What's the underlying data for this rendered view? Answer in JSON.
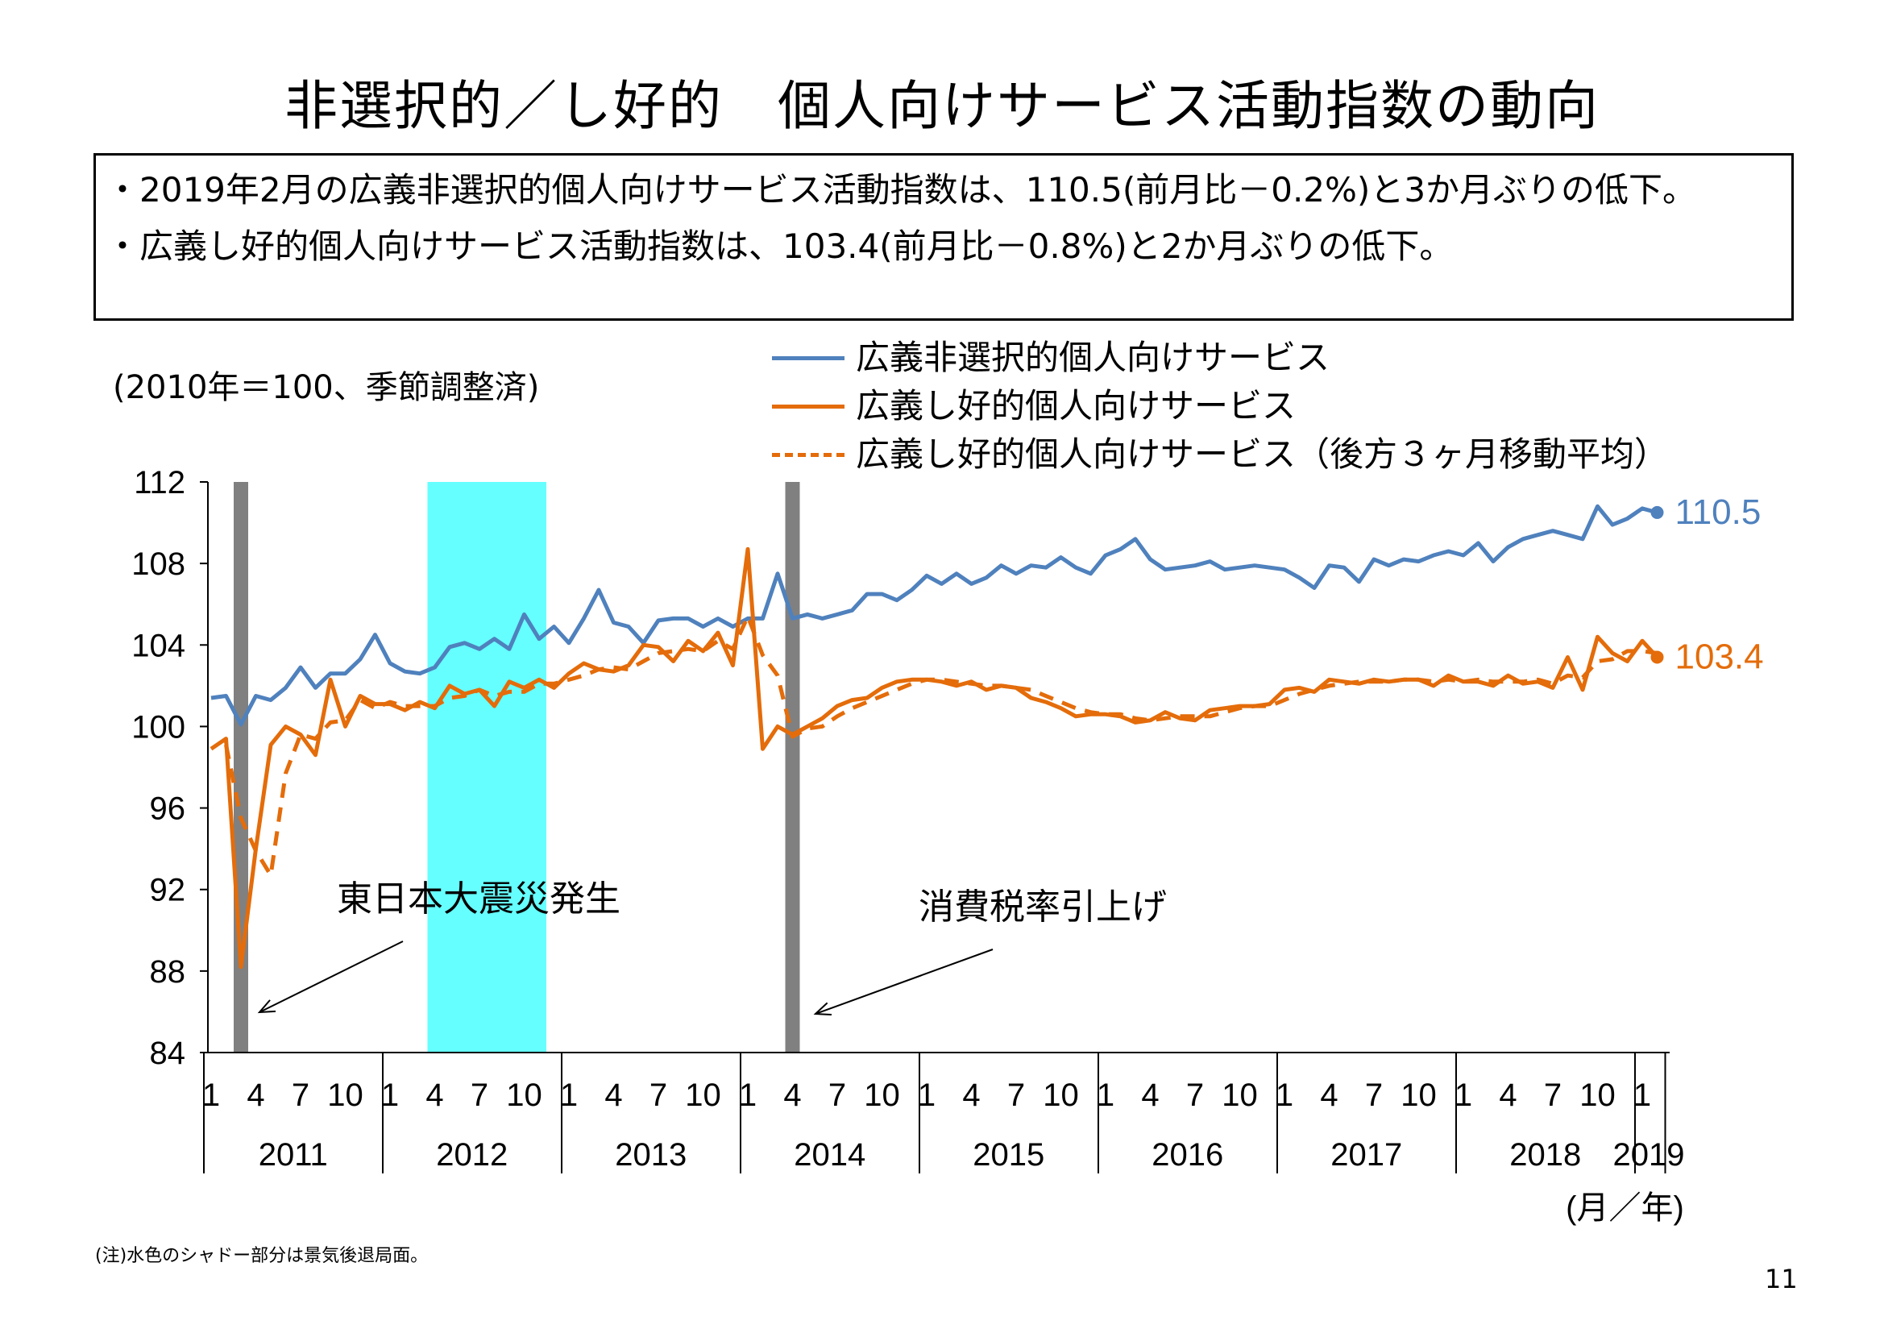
{
  "title": "非選択的／し好的　個人向けサービス活動指数の動向",
  "summary": {
    "line1": "2019年2月の広義非選択的個人向けサービス活動指数は、110.5(前月比－0.2%)と3か月ぶりの低下。",
    "line2": "広義し好的個人向けサービス活動指数は、103.4(前月比－0.8%)と2か月ぶりの低下。"
  },
  "unit_note": "(2010年＝100、季節調整済)",
  "legend": [
    {
      "label": "広義非選択的個人向けサービス",
      "color": "#4f81bd",
      "style": "solid"
    },
    {
      "label": "広義し好的個人向けサービス",
      "color": "#e46c0a",
      "style": "solid"
    },
    {
      "label": "広義し好的個人向けサービス（後方３ヶ月移動平均）",
      "color": "#e46c0a",
      "style": "dashed"
    }
  ],
  "footnote": "(注)水色のシャドー部分は景気後退局面。",
  "page_number": "11",
  "chart_data": {
    "type": "line",
    "ylim": [
      84,
      112
    ],
    "yticks": [
      84,
      88,
      92,
      96,
      100,
      104,
      108,
      112
    ],
    "x_start": "2011-01",
    "x_end": "2019-02",
    "month_tick_labels": [
      "1",
      "4",
      "7",
      "10"
    ],
    "years": [
      "2011",
      "2012",
      "2013",
      "2014",
      "2015",
      "2016",
      "2017",
      "2018",
      "2019"
    ],
    "xlabel": "(月／年)",
    "series": [
      {
        "name": "広義非選択的個人向けサービス",
        "color": "#4f81bd",
        "dash": false,
        "values": [
          101.4,
          101.5,
          100.1,
          101.5,
          101.3,
          101.9,
          102.9,
          101.9,
          102.6,
          102.6,
          103.3,
          104.5,
          103.1,
          102.7,
          102.6,
          102.9,
          103.9,
          104.1,
          103.8,
          104.3,
          103.8,
          105.5,
          104.3,
          104.9,
          104.1,
          105.3,
          106.7,
          105.1,
          104.9,
          104.1,
          105.2,
          105.3,
          105.3,
          104.9,
          105.3,
          104.9,
          105.3,
          105.3,
          107.5,
          105.3,
          105.5,
          105.3,
          105.5,
          105.7,
          106.5,
          106.5,
          106.2,
          106.7,
          107.4,
          107.0,
          107.5,
          107.0,
          107.3,
          107.9,
          107.5,
          107.9,
          107.8,
          108.3,
          107.8,
          107.5,
          108.4,
          108.7,
          109.2,
          108.2,
          107.7,
          107.8,
          107.9,
          108.1,
          107.7,
          107.8,
          107.9,
          107.8,
          107.7,
          107.3,
          106.8,
          107.9,
          107.8,
          107.1,
          108.2,
          107.9,
          108.2,
          108.1,
          108.4,
          108.6,
          108.4,
          109.0,
          108.1,
          108.8,
          109.2,
          109.4,
          109.6,
          109.4,
          109.2,
          110.8,
          109.9,
          110.2,
          110.7,
          110.5
        ],
        "end_label": "110.5"
      },
      {
        "name": "広義し好的個人向けサービス",
        "color": "#e46c0a",
        "dash": false,
        "values": [
          98.9,
          99.4,
          88.2,
          94.0,
          99.1,
          100.0,
          99.6,
          98.6,
          102.3,
          100.0,
          101.5,
          101.1,
          101.1,
          100.8,
          101.2,
          100.9,
          102.0,
          101.6,
          101.8,
          101.0,
          102.2,
          101.9,
          102.3,
          101.9,
          102.6,
          103.1,
          102.8,
          102.7,
          103.0,
          104.0,
          103.9,
          103.2,
          104.2,
          103.7,
          104.6,
          103.0,
          108.7,
          98.9,
          100.0,
          99.6,
          100.0,
          100.4,
          101.0,
          101.3,
          101.4,
          101.9,
          102.2,
          102.3,
          102.3,
          102.2,
          102.0,
          102.2,
          101.8,
          102.0,
          101.9,
          101.4,
          101.2,
          100.9,
          100.5,
          100.6,
          100.6,
          100.5,
          100.2,
          100.3,
          100.7,
          100.4,
          100.3,
          100.8,
          100.9,
          101.0,
          101.0,
          101.1,
          101.8,
          101.9,
          101.7,
          102.3,
          102.2,
          102.1,
          102.3,
          102.2,
          102.3,
          102.3,
          102.0,
          102.5,
          102.2,
          102.2,
          102.0,
          102.5,
          102.1,
          102.2,
          101.9,
          103.4,
          101.8,
          104.4,
          103.6,
          103.2,
          104.2,
          103.4
        ],
        "end_label": "103.4"
      },
      {
        "name": "広義し好的個人向けサービス（後方３ヶ月移動平均）",
        "color": "#e46c0a",
        "dash": true,
        "values": [
          null,
          99.1,
          95.5,
          93.9,
          92.7,
          97.7,
          99.6,
          99.4,
          100.2,
          100.3,
          101.3,
          100.9,
          101.2,
          101.0,
          101.0,
          101.0,
          101.4,
          101.5,
          101.8,
          101.5,
          101.7,
          101.7,
          102.1,
          102.1,
          102.3,
          102.5,
          102.8,
          102.9,
          102.8,
          103.2,
          103.6,
          103.7,
          103.8,
          103.7,
          104.2,
          103.8,
          105.4,
          103.5,
          102.5,
          99.5,
          99.9,
          100.0,
          100.5,
          100.9,
          101.2,
          101.5,
          101.8,
          102.1,
          102.3,
          102.3,
          102.2,
          102.1,
          102.0,
          102.0,
          101.9,
          101.8,
          101.5,
          101.2,
          100.9,
          100.7,
          100.6,
          100.6,
          100.4,
          100.3,
          100.4,
          100.5,
          100.5,
          100.5,
          100.7,
          100.9,
          101.0,
          101.0,
          101.3,
          101.6,
          101.8,
          102.0,
          102.1,
          102.2,
          102.2,
          102.2,
          102.3,
          102.3,
          102.2,
          102.3,
          102.2,
          102.3,
          102.2,
          102.2,
          102.2,
          102.3,
          102.1,
          102.5,
          102.4,
          103.2,
          103.3,
          103.7,
          103.7,
          103.6
        ],
        "end_label": ""
      }
    ],
    "shaded_regions": [
      {
        "from": "2011-03",
        "to": "2011-03",
        "color": "#808080",
        "label": "東日本大震災発生"
      },
      {
        "from": "2012-04",
        "to": "2012-11",
        "color": "#66ffff",
        "label": ""
      },
      {
        "from": "2014-04",
        "to": "2014-04",
        "color": "#808080",
        "label": "消費税率引上げ"
      }
    ]
  }
}
